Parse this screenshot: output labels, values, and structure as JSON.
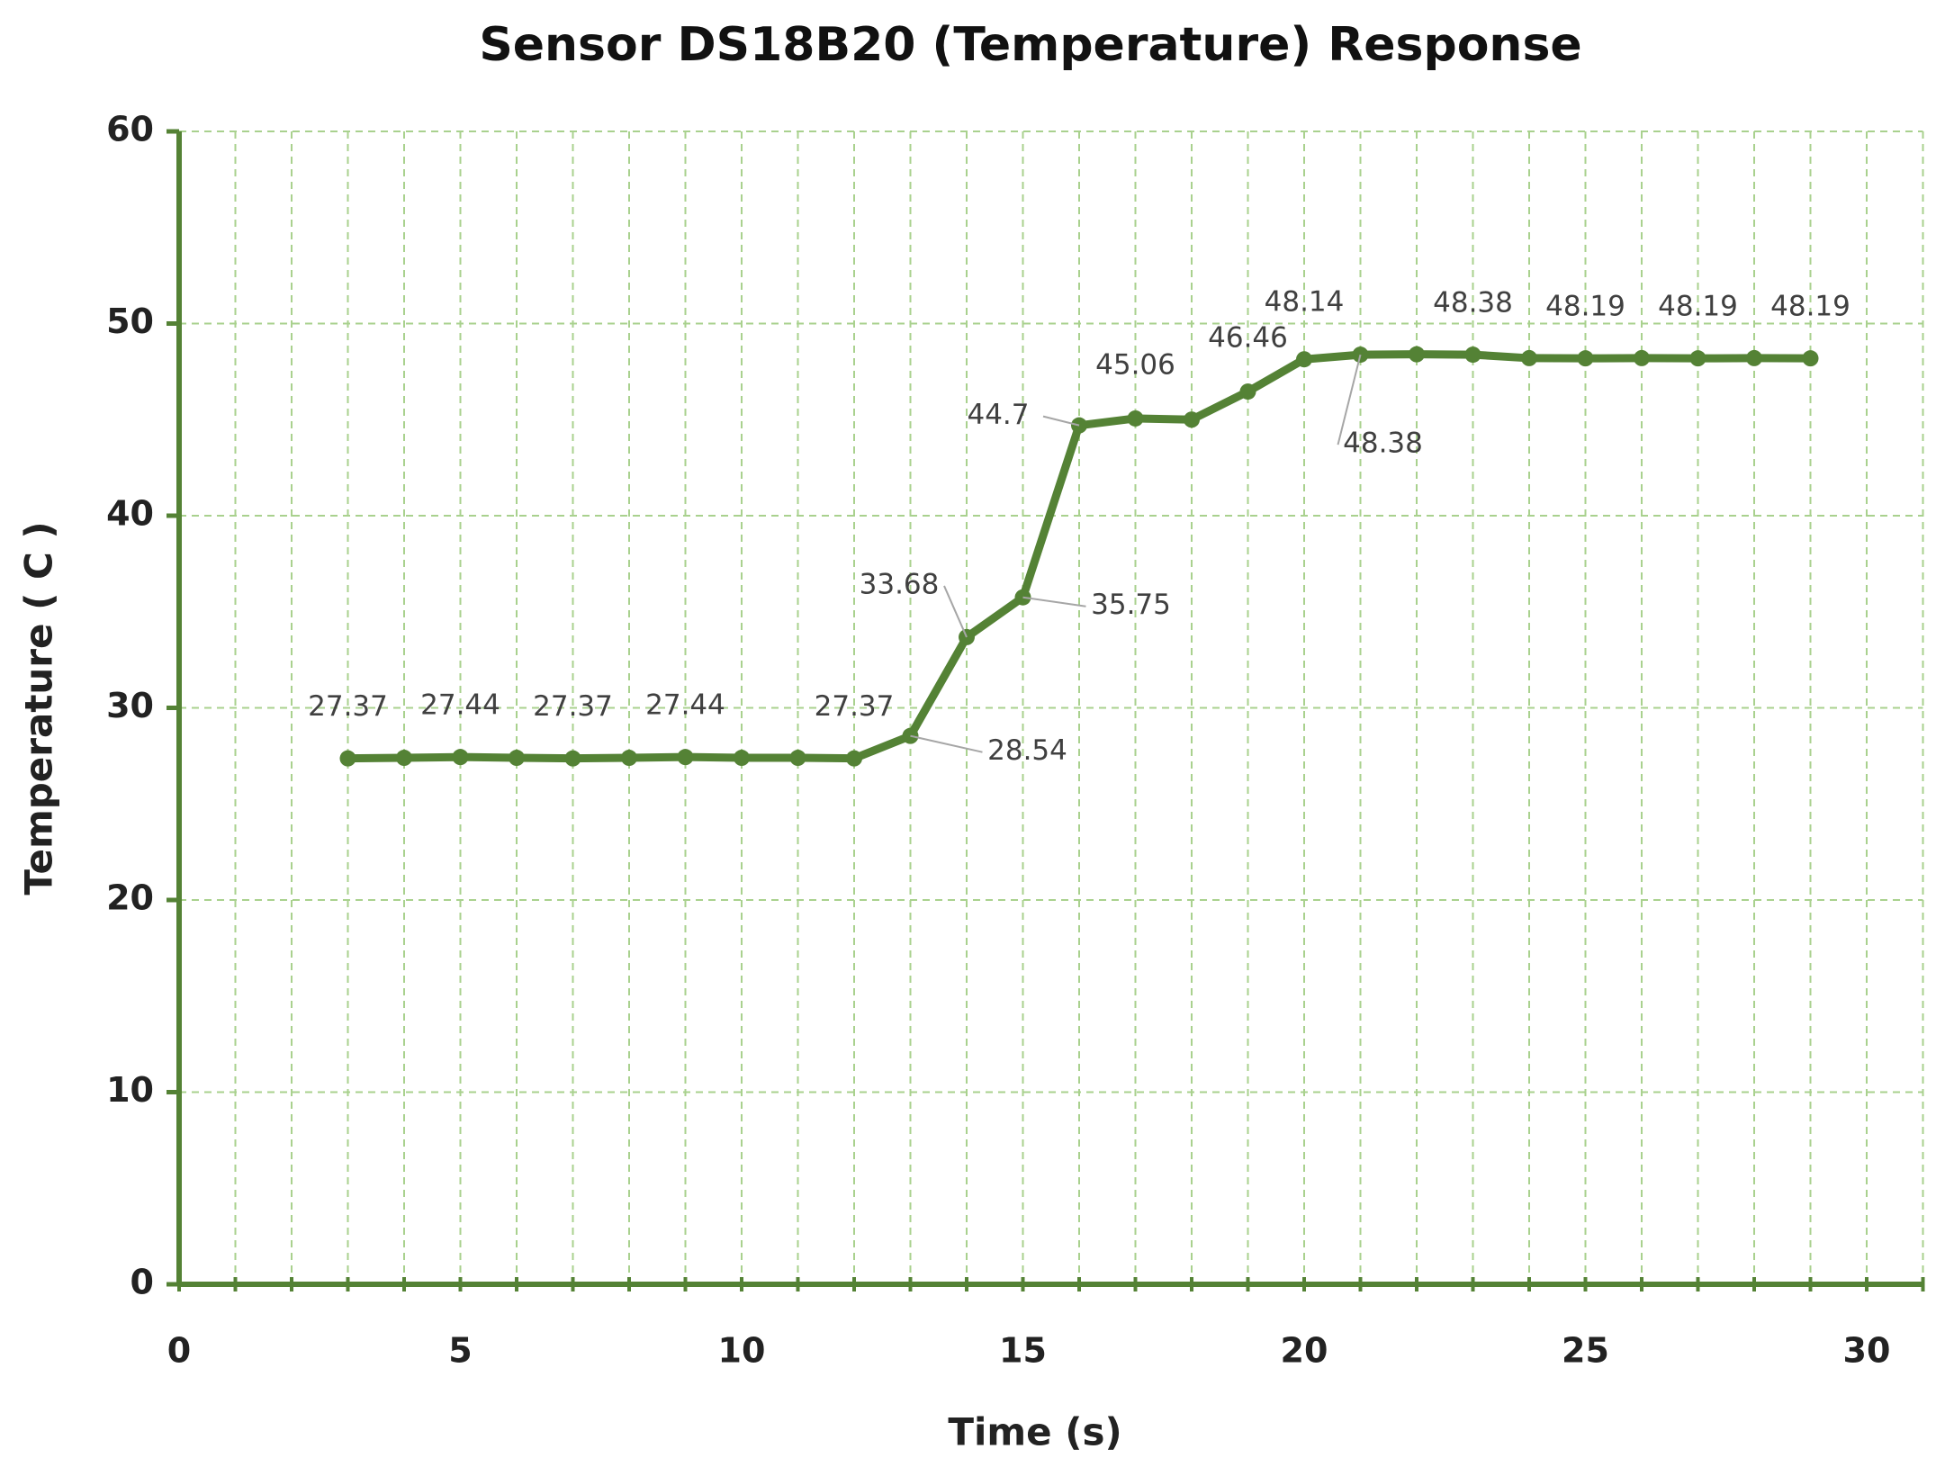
{
  "chart_data": {
    "type": "line",
    "title": "Sensor DS18B20 (Temperature) Response",
    "x_label": "Time (s)",
    "y_label": "Temperature  ( C )",
    "x": [
      3,
      4,
      5,
      6,
      7,
      8,
      9,
      10,
      11,
      12,
      13,
      14,
      15,
      16,
      17,
      18,
      19,
      20,
      21,
      22,
      23,
      24,
      25,
      26,
      27,
      28,
      29
    ],
    "series": [
      {
        "name": "Temperature",
        "color": "#548235",
        "values": [
          27.37,
          27.4,
          27.44,
          27.4,
          27.37,
          27.4,
          27.44,
          27.4,
          27.4,
          27.37,
          28.54,
          33.68,
          35.75,
          44.7,
          45.06,
          45.0,
          46.46,
          48.14,
          48.38,
          48.4,
          48.38,
          48.2,
          48.19,
          48.2,
          48.19,
          48.2,
          48.19
        ],
        "value_labels": [
          "27.37",
          null,
          "27.44",
          null,
          "27.37",
          null,
          "27.44",
          null,
          null,
          "27.37",
          "28.54",
          "33.68",
          "35.75",
          "44.7",
          "45.06",
          null,
          "46.46",
          "48.14",
          "48.38",
          null,
          "48.38",
          null,
          "48.19",
          null,
          "48.19",
          null,
          "48.19"
        ]
      }
    ],
    "xlim": [
      0,
      31
    ],
    "xticks": [
      0,
      5,
      10,
      15,
      20,
      25,
      30
    ],
    "ylim": [
      0,
      60
    ],
    "yticks": [
      0,
      10,
      20,
      30,
      40,
      50,
      60
    ],
    "grid": true,
    "grid_color": "#a9d18e",
    "axis_color": "#548235"
  }
}
